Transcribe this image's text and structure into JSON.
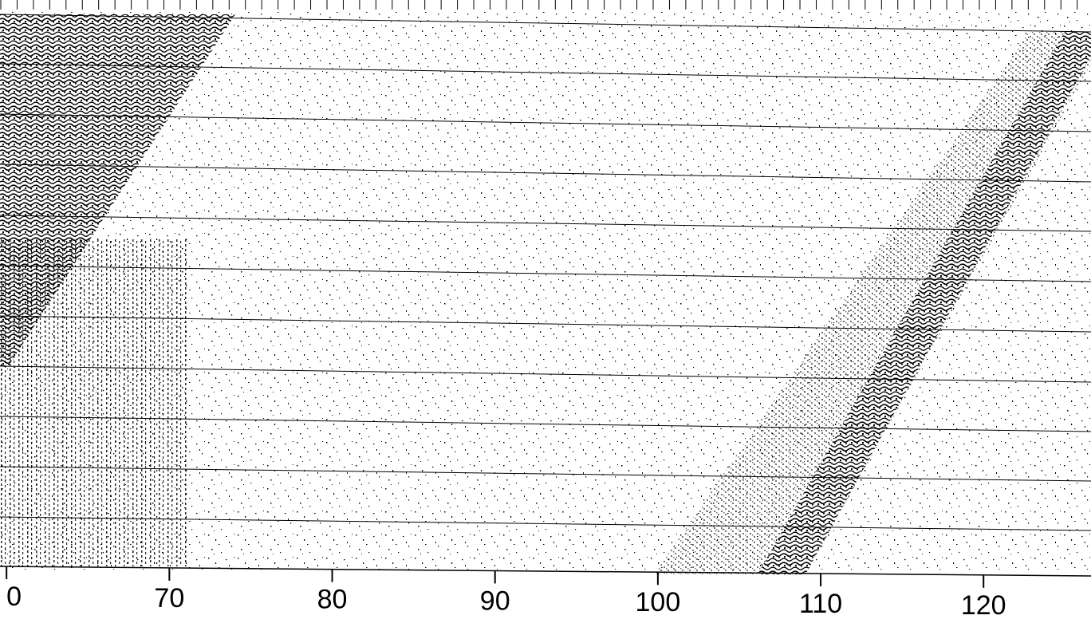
{
  "chart_data": {
    "type": "record",
    "xlim": [
      59.6,
      126.6
    ],
    "xticks": [
      {
        "value": 60,
        "label": "0"
      },
      70,
      80,
      90,
      100,
      110,
      120
    ]
  }
}
